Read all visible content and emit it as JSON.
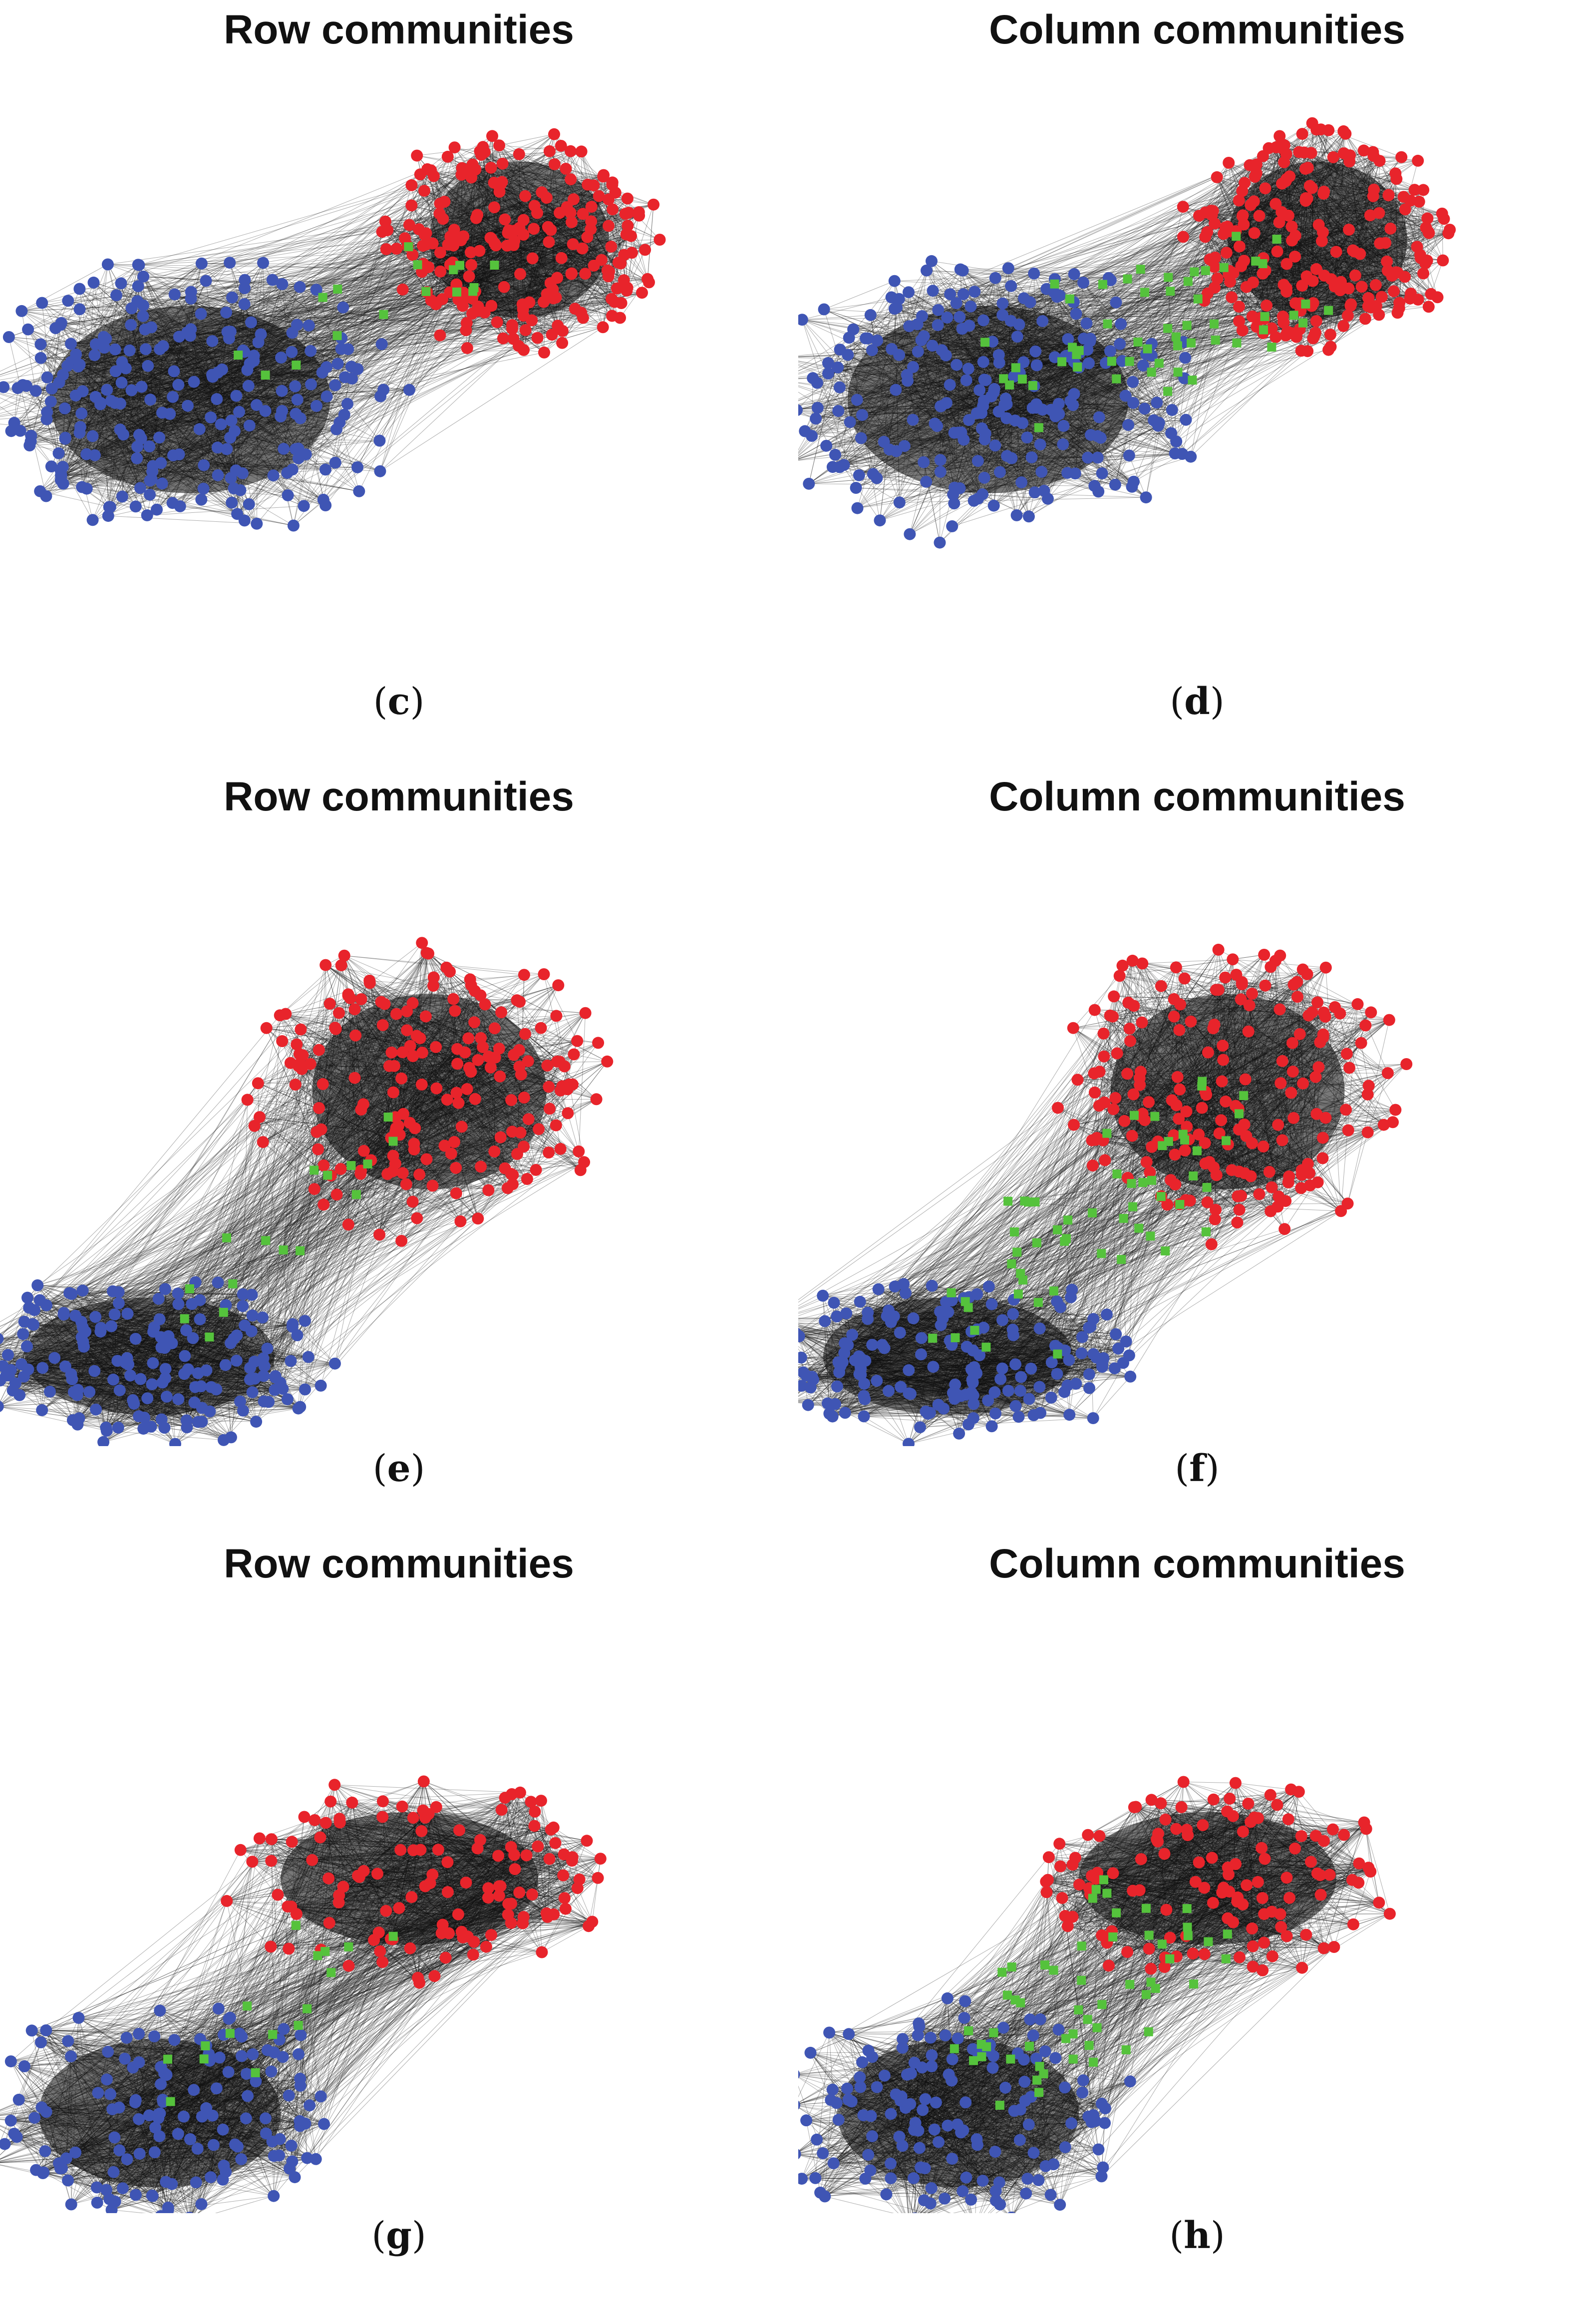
{
  "colors": {
    "community_a": "#e8242b",
    "community_b": "#3f55b4",
    "overlap": "#55c23c",
    "edge": "#141414"
  },
  "panels": [
    {
      "title": "Row communities",
      "caption_label": "c",
      "layout": "c"
    },
    {
      "title": "Column communities",
      "caption_label": "d",
      "layout": "c"
    },
    {
      "title": "Row communities",
      "caption_label": "e",
      "layout": "e"
    },
    {
      "title": "Column communities",
      "caption_label": "f",
      "layout": "e"
    },
    {
      "title": "Row communities",
      "caption_label": "g",
      "layout": "g"
    },
    {
      "title": "Column communities",
      "caption_label": "h",
      "layout": "g"
    }
  ],
  "legend_semantics": {
    "red_circle": "community-a-node",
    "blue_circle": "community-b-node",
    "green_square": "overlap-node"
  }
}
